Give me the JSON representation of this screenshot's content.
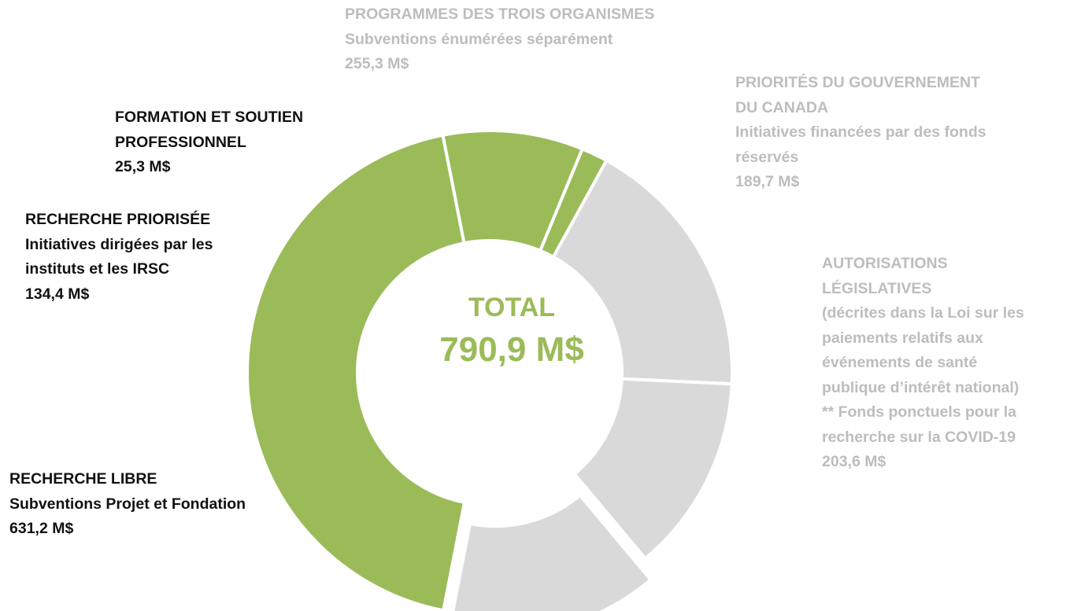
{
  "chart_data": {
    "type": "pie",
    "variant": "donut",
    "center": {
      "title": "TOTAL",
      "value_label": "790,9 M$"
    },
    "colors": {
      "highlight": "#9bbb59",
      "muted": "#d9d9d9",
      "muted_text": "#bdbdbd",
      "dark_text": "#111111",
      "separator": "#ffffff"
    },
    "slices": [
      {
        "key": "libre",
        "value": 631.2,
        "highlighted": true,
        "lines": [
          "RECHERCHE LIBRE",
          "Subventions Projet et Fondation",
          "631,2 M$"
        ]
      },
      {
        "key": "priorisee",
        "value": 134.4,
        "highlighted": true,
        "lines": [
          "RECHERCHE PRIORISÉE",
          "Initiatives dirigées par les",
          "instituts et les IRSC",
          "134,4 M$"
        ]
      },
      {
        "key": "formation",
        "value": 25.3,
        "highlighted": true,
        "lines": [
          "FORMATION ET SOUTIEN",
          "PROFESSIONNEL",
          "25,3 M$"
        ]
      },
      {
        "key": "programmes",
        "value": 255.3,
        "highlighted": false,
        "lines": [
          "PROGRAMMES DES TROIS ORGANISMES",
          "Subventions énumérées séparément",
          "255,3 M$"
        ]
      },
      {
        "key": "priorites",
        "value": 189.7,
        "highlighted": false,
        "lines": [
          "PRIORITÉS DU GOUVERNEMENT",
          "DU CANADA",
          "Initiatives financées par des fonds",
          "réservés",
          "189,7 M$"
        ]
      },
      {
        "key": "autorisations",
        "value": 203.6,
        "highlighted": false,
        "exploded": true,
        "lines": [
          "AUTORISATIONS",
          "LÉGISLATIVES",
          "(décrites dans la Loi sur les",
          "paiements relatifs aux",
          "événements de santé",
          "publique d’intérêt national)",
          "** Fonds ponctuels pour la",
          "recherche sur la COVID-19",
          "203,6 M$"
        ]
      }
    ]
  }
}
